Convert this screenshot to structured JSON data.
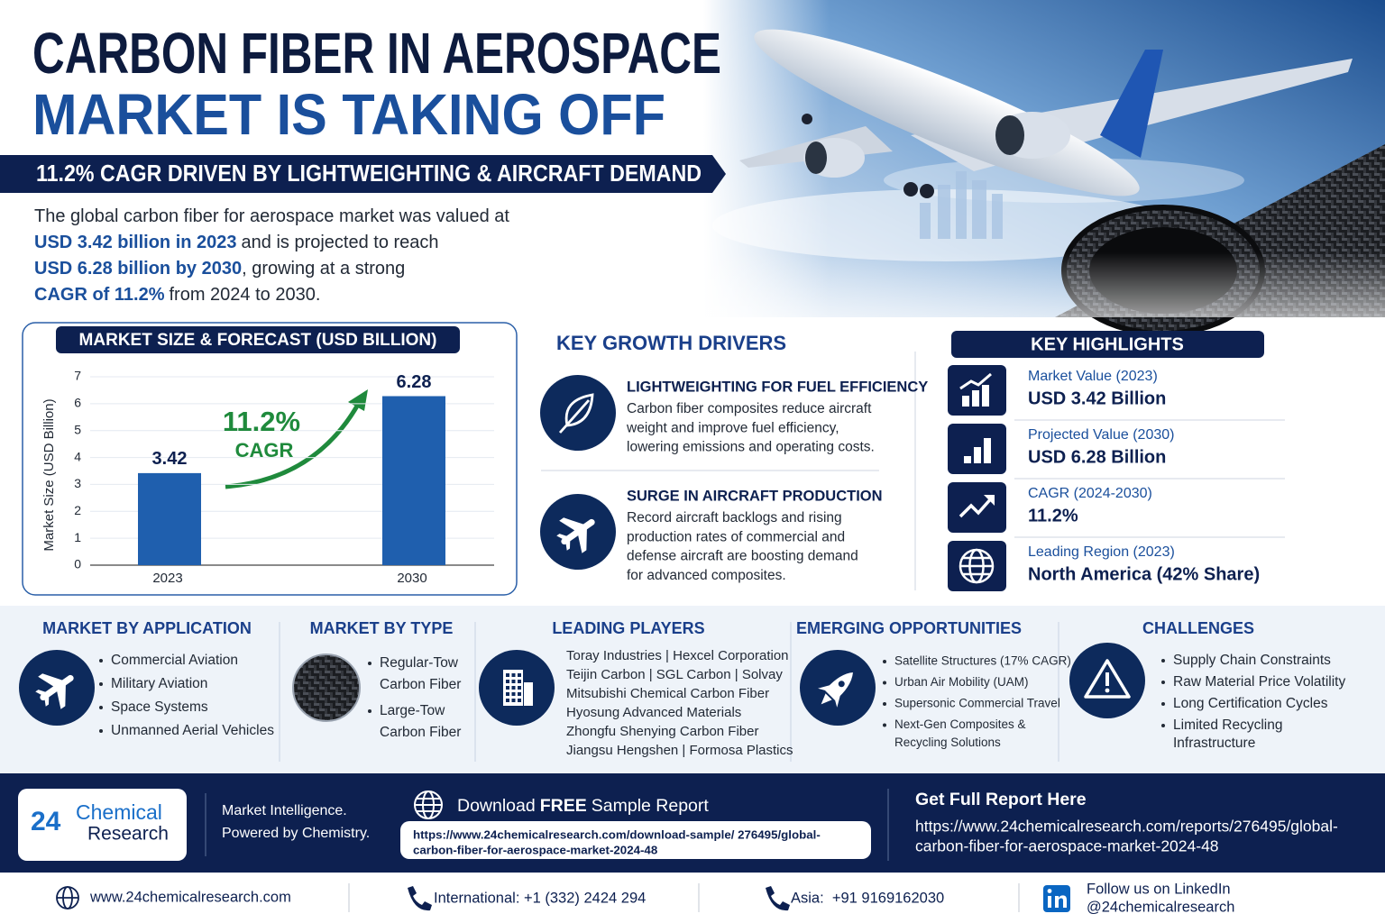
{
  "header": {
    "title": [
      "CARBON FIBER IN AEROSPACE",
      "MARKET IS TAKING OFF"
    ],
    "subtitle": "11.2% CAGR DRIVEN BY LIGHTWEIGHTING & AIRCRAFT DEMAND"
  },
  "intro": [
    [
      {
        "text": "The global carbon fiber for aerospace market was valued at"
      }
    ],
    [
      {
        "text": "USD 3.42 billion in 2023",
        "highlight": true
      },
      {
        "text": "and is projected to reach"
      }
    ],
    [
      {
        "text": "USD 6.28 billion by 2030",
        "highlight": true
      },
      {
        "text": ", growing at a strong"
      }
    ],
    [
      {
        "text": "CAGR of 11.2%",
        "highlight": true
      },
      {
        "text": "from 2024 to 2030."
      }
    ]
  ],
  "chart_data": {
    "type": "bar",
    "title": "MARKET SIZE & FORECAST (USD BILLION)",
    "ylabel": "Market Size (USD Billion)",
    "categories": [
      "2023",
      "2030"
    ],
    "values": [
      3.42,
      6.28
    ],
    "color": "#1f5fae",
    "ylim": [
      0,
      7
    ],
    "yticks": [
      0,
      1,
      2,
      3,
      4,
      5,
      6,
      7
    ],
    "grid": true,
    "annotations": [
      "11.2%",
      "CAGR"
    ]
  },
  "drivers": {
    "title": "KEY GROWTH DRIVERS",
    "items": [
      {
        "title": "LIGHTWEIGHTING FOR FUEL EFFICIENCY",
        "body": [
          "Carbon fiber composites reduce aircraft",
          "weight and improve fuel efficiency,",
          "lowering emissions and operating costs."
        ]
      },
      {
        "title": "SURGE IN AIRCRAFT PRODUCTION",
        "body": [
          "Record aircraft backlogs and rising",
          "production rates of commercial and",
          "defense aircraft are boosting demand",
          "for advanced composites."
        ]
      }
    ]
  },
  "highlights": {
    "title": "KEY HIGHLIGHTS",
    "items": [
      {
        "label": "Market Value (2023)",
        "value": "USD 3.42 Billion"
      },
      {
        "label": "Projected Value (2030)",
        "value": "USD 6.28 Billion"
      },
      {
        "label": "CAGR (2024-2030)",
        "value": "11.2%"
      },
      {
        "label": "Leading Region (2023)",
        "value": "North America (42% Share)"
      }
    ]
  },
  "sections": [
    {
      "title": "MARKET BY APPLICATION",
      "items": [
        [
          "Commercial Aviation"
        ],
        [
          "Military Aviation"
        ],
        [
          "Space Systems"
        ],
        [
          "Unmanned Aerial Vehicles"
        ]
      ]
    },
    {
      "title": "MARKET BY TYPE",
      "items": [
        [
          "Regular-Tow",
          "Carbon Fiber"
        ],
        [
          "Large-Tow",
          "Carbon Fiber"
        ]
      ]
    },
    {
      "title": "LEADING PLAYERS",
      "lines": [
        "Toray Industries | Hexcel Corporation",
        "Teijin Carbon | SGL Carbon | Solvay",
        "Mitsubishi Chemical Carbon Fiber",
        "Hyosung Advanced Materials",
        "Zhongfu Shenying Carbon Fiber",
        "Jiangsu Hengshen | Formosa Plastics"
      ]
    },
    {
      "title": "EMERGING OPPORTUNITIES",
      "items": [
        [
          "Satellite Structures (17% CAGR)"
        ],
        [
          "Urban Air Mobility (UAM)"
        ],
        [
          "Supersonic Commercial Travel"
        ],
        [
          "Next-Gen Composites &",
          "Recycling Solutions"
        ]
      ]
    },
    {
      "title": "CHALLENGES",
      "items": [
        [
          "Supply Chain Constraints"
        ],
        [
          "Raw Material Price Volatility"
        ],
        [
          "Long Certification Cycles"
        ],
        [
          "Limited Recycling",
          "Infrastructure"
        ]
      ]
    }
  ],
  "footer": {
    "logo": {
      "number": "24",
      "name": [
        "Chemical",
        "Research"
      ]
    },
    "tagline": [
      "Market Intelligence.",
      "Powered by Chemistry."
    ],
    "download": {
      "title": [
        {
          "text": "Download"
        },
        {
          "text": "FREE",
          "bold": true
        },
        {
          "text": "Sample Report"
        }
      ],
      "url": [
        "https://www.24chemicalresearch.com/download-sample/ 276495/global-",
        "carbon-fiber-for-aerospace-market-2024-48"
      ]
    },
    "full_report": {
      "title": "Get Full Report Here",
      "url": [
        "https://www.24chemicalresearch.com/reports/276495/global-",
        "carbon-fiber-for-aerospace-market-2024-48"
      ]
    }
  },
  "contacts": {
    "website": "www.24chemicalresearch.com",
    "international": "International: +1 (332) 2424 294",
    "asia": "Asia:  +91 9169162030",
    "linkedin": [
      "Follow us on LinkedIn",
      "@24chemicalresearch"
    ]
  }
}
